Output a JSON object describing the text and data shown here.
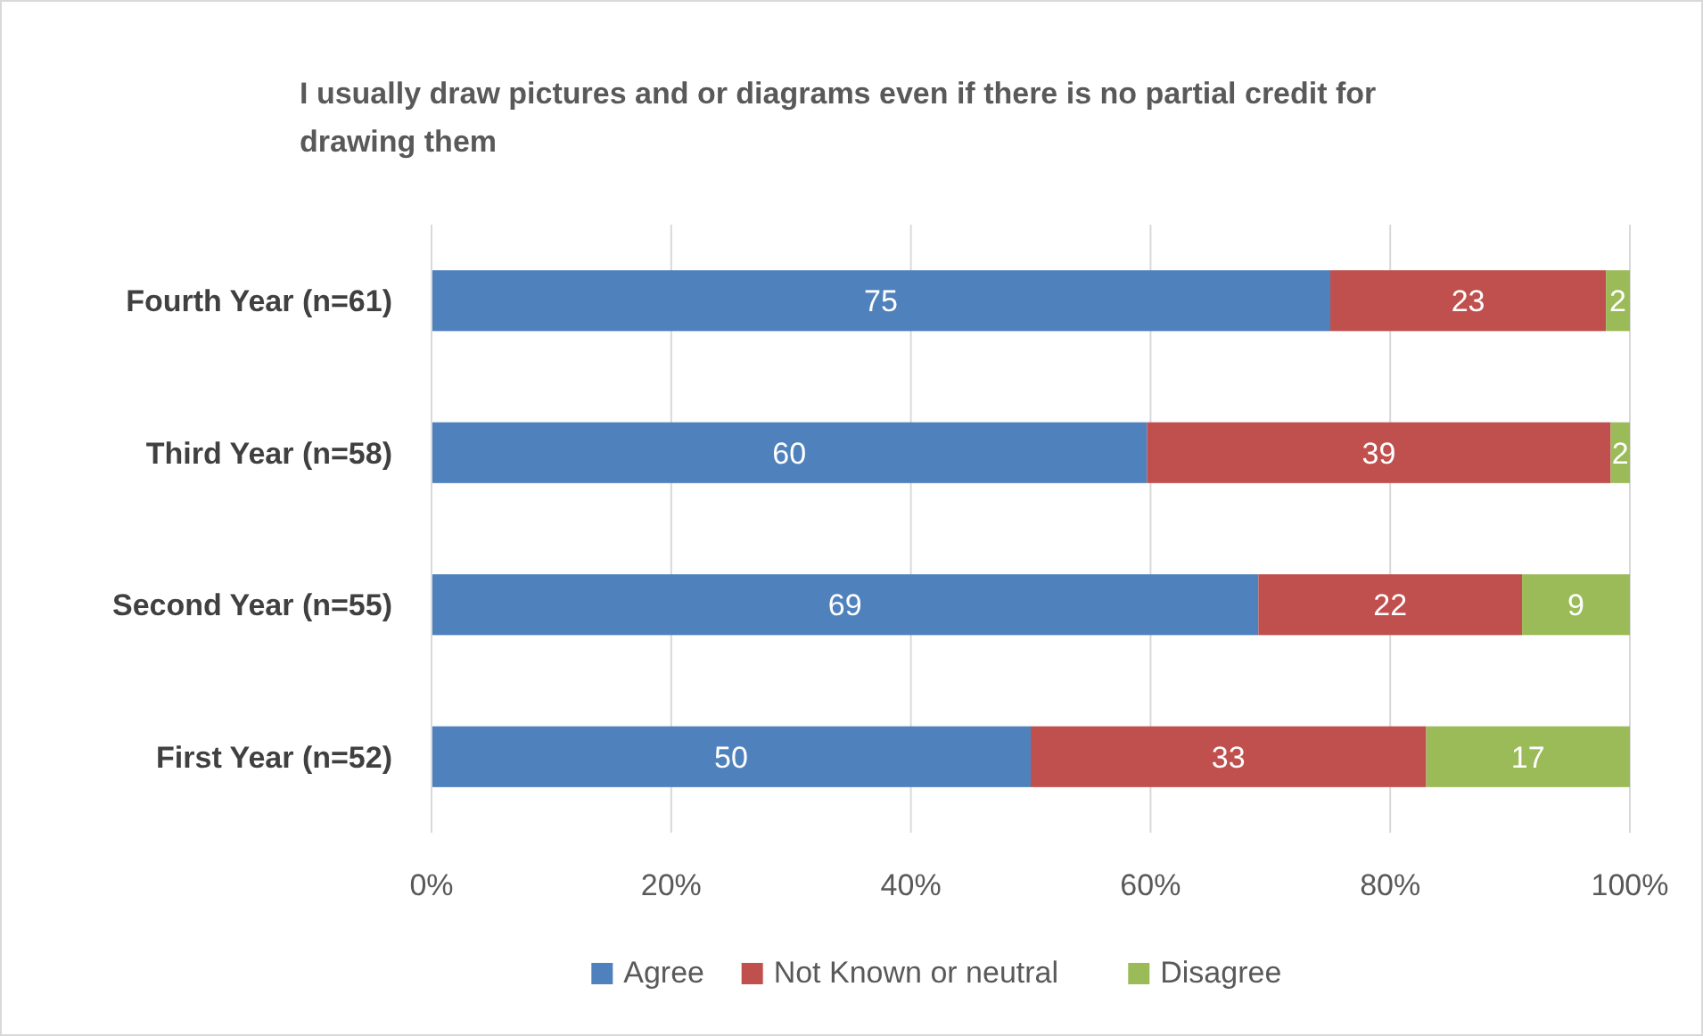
{
  "chart_data": {
    "type": "bar",
    "orientation": "horizontal",
    "stacked": true,
    "title": "I usually draw pictures and or diagrams even if there is no partial credit for drawing them",
    "categories": [
      "Fourth Year (n=61)",
      "Third Year (n=58)",
      "Second Year (n=55)",
      "First Year (n=52)"
    ],
    "series": [
      {
        "name": "Agree",
        "color": "#4f81bd",
        "values": [
          75,
          59.7,
          69,
          50
        ],
        "value_labels": [
          "75",
          "60",
          "69",
          "50"
        ]
      },
      {
        "name": "Not Known or neutral",
        "color": "#c0504d",
        "values": [
          23,
          38.7,
          22,
          33
        ],
        "value_labels": [
          "23",
          "39",
          "22",
          "33"
        ]
      },
      {
        "name": "Disagree",
        "color": "#9bbb59",
        "values": [
          2,
          1.6,
          9,
          17
        ],
        "value_labels": [
          "2",
          "2",
          "9",
          "17"
        ]
      }
    ],
    "xlim": [
      0,
      100
    ],
    "xticks": [
      {
        "value": 0,
        "label": "0%"
      },
      {
        "value": 20,
        "label": "20%"
      },
      {
        "value": 40,
        "label": "40%"
      },
      {
        "value": 60,
        "label": "60%"
      },
      {
        "value": 80,
        "label": "80%"
      },
      {
        "value": 100,
        "label": "100%"
      }
    ],
    "grid": "x",
    "legend": "bottom"
  }
}
